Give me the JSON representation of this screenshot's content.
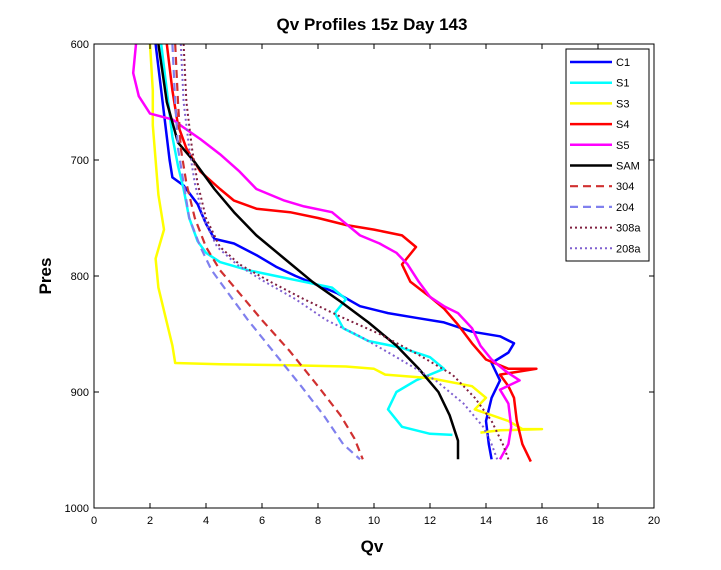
{
  "chart_data": {
    "type": "line",
    "title": "Qv Profiles 15z Day 143",
    "xlabel": "Qv",
    "ylabel": "Pres",
    "xlim": [
      0,
      20
    ],
    "ylim": [
      600,
      1000
    ],
    "y_reversed": true,
    "grid": false,
    "legend_position": "top-right",
    "xticks": [
      0,
      2,
      4,
      6,
      8,
      10,
      12,
      14,
      16,
      18,
      20
    ],
    "xtick_labels": [
      "0",
      "2",
      "4",
      "6",
      "8",
      "10",
      "12",
      "14",
      "16",
      "18",
      "20"
    ],
    "yticks": [
      600,
      700,
      800,
      900,
      1000
    ],
    "ytick_labels": [
      "600",
      "700",
      "800",
      "900",
      "1000"
    ],
    "series": [
      {
        "name": "C1",
        "color": "#0000ff",
        "dash": "solid",
        "width": 2.5,
        "points": [
          [
            2.2,
            600
          ],
          [
            2.4,
            640
          ],
          [
            2.6,
            680
          ],
          [
            2.7,
            700
          ],
          [
            2.8,
            715
          ],
          [
            3.2,
            722
          ],
          [
            3.7,
            738
          ],
          [
            4.0,
            755
          ],
          [
            4.3,
            768
          ],
          [
            5.0,
            772
          ],
          [
            5.8,
            782
          ],
          [
            6.5,
            792
          ],
          [
            7.2,
            800
          ],
          [
            8.0,
            808
          ],
          [
            8.7,
            815
          ],
          [
            9.5,
            826
          ],
          [
            10.5,
            832
          ],
          [
            11.5,
            836
          ],
          [
            12.5,
            840
          ],
          [
            13.5,
            848
          ],
          [
            14.5,
            852
          ],
          [
            15.0,
            858
          ],
          [
            14.8,
            866
          ],
          [
            14.2,
            875
          ],
          [
            14.5,
            890
          ],
          [
            14.2,
            905
          ],
          [
            14.0,
            925
          ],
          [
            14.1,
            945
          ],
          [
            14.2,
            958
          ]
        ]
      },
      {
        "name": "S1",
        "color": "#00ffff",
        "dash": "solid",
        "width": 2.5,
        "points": [
          [
            2.4,
            600
          ],
          [
            2.6,
            640
          ],
          [
            2.8,
            680
          ],
          [
            3.0,
            705
          ],
          [
            3.2,
            725
          ],
          [
            3.4,
            750
          ],
          [
            3.7,
            770
          ],
          [
            4.0,
            780
          ],
          [
            4.5,
            788
          ],
          [
            5.5,
            795
          ],
          [
            6.5,
            800
          ],
          [
            7.5,
            805
          ],
          [
            8.5,
            810
          ],
          [
            9.0,
            820
          ],
          [
            8.6,
            832
          ],
          [
            8.9,
            845
          ],
          [
            9.8,
            856
          ],
          [
            11.0,
            862
          ],
          [
            12.0,
            870
          ],
          [
            12.5,
            880
          ],
          [
            11.5,
            890
          ],
          [
            10.8,
            900
          ],
          [
            10.5,
            915
          ],
          [
            11.0,
            930
          ],
          [
            12.0,
            936
          ],
          [
            12.8,
            937
          ]
        ]
      },
      {
        "name": "S3",
        "color": "#ffff00",
        "dash": "solid",
        "width": 2.5,
        "points": [
          [
            2.0,
            600
          ],
          [
            2.1,
            640
          ],
          [
            2.1,
            670
          ],
          [
            2.2,
            700
          ],
          [
            2.3,
            730
          ],
          [
            2.5,
            760
          ],
          [
            2.2,
            785
          ],
          [
            2.3,
            810
          ],
          [
            2.6,
            840
          ],
          [
            2.8,
            860
          ],
          [
            2.9,
            875
          ],
          [
            4.5,
            876
          ],
          [
            7.0,
            877
          ],
          [
            9.0,
            878
          ],
          [
            10.0,
            880
          ],
          [
            10.4,
            885
          ],
          [
            12.0,
            888
          ],
          [
            13.5,
            895
          ],
          [
            14.0,
            905
          ],
          [
            13.6,
            915
          ],
          [
            14.2,
            920
          ],
          [
            14.8,
            925
          ],
          [
            15.3,
            932
          ],
          [
            16.0,
            932
          ],
          [
            14.5,
            933
          ],
          [
            13.8,
            935
          ]
        ]
      },
      {
        "name": "S4",
        "color": "#ff0000",
        "dash": "solid",
        "width": 2.5,
        "points": [
          [
            2.6,
            600
          ],
          [
            2.8,
            640
          ],
          [
            3.0,
            670
          ],
          [
            3.3,
            690
          ],
          [
            3.8,
            710
          ],
          [
            4.5,
            725
          ],
          [
            5.0,
            735
          ],
          [
            5.8,
            742
          ],
          [
            7.0,
            745
          ],
          [
            8.0,
            750
          ],
          [
            9.0,
            756
          ],
          [
            10.0,
            760
          ],
          [
            11.0,
            765
          ],
          [
            11.5,
            775
          ],
          [
            11.0,
            790
          ],
          [
            11.3,
            805
          ],
          [
            12.0,
            818
          ],
          [
            12.5,
            828
          ],
          [
            13.0,
            842
          ],
          [
            13.5,
            858
          ],
          [
            14.0,
            872
          ],
          [
            14.8,
            880
          ],
          [
            15.8,
            880
          ],
          [
            14.5,
            885
          ],
          [
            14.8,
            895
          ],
          [
            15.0,
            905
          ],
          [
            15.1,
            925
          ],
          [
            15.3,
            945
          ],
          [
            15.6,
            960
          ]
        ]
      },
      {
        "name": "S5",
        "color": "#ff00ff",
        "dash": "solid",
        "width": 2.5,
        "points": [
          [
            1.5,
            600
          ],
          [
            1.4,
            625
          ],
          [
            1.6,
            645
          ],
          [
            2.0,
            660
          ],
          [
            2.8,
            665
          ],
          [
            3.2,
            672
          ],
          [
            3.8,
            682
          ],
          [
            4.5,
            695
          ],
          [
            5.2,
            710
          ],
          [
            5.8,
            725
          ],
          [
            6.8,
            735
          ],
          [
            7.5,
            740
          ],
          [
            8.5,
            745
          ],
          [
            9.0,
            755
          ],
          [
            9.5,
            765
          ],
          [
            10.2,
            772
          ],
          [
            10.8,
            780
          ],
          [
            11.2,
            790
          ],
          [
            11.6,
            805
          ],
          [
            12.0,
            818
          ],
          [
            12.5,
            826
          ],
          [
            13.0,
            832
          ],
          [
            13.5,
            845
          ],
          [
            13.8,
            860
          ],
          [
            14.2,
            872
          ],
          [
            14.7,
            882
          ],
          [
            15.2,
            890
          ],
          [
            14.5,
            898
          ],
          [
            14.8,
            910
          ],
          [
            14.9,
            930
          ],
          [
            14.8,
            945
          ],
          [
            14.5,
            958
          ]
        ]
      },
      {
        "name": "SAM",
        "color": "#000000",
        "dash": "solid",
        "width": 2.5,
        "points": [
          [
            2.3,
            600
          ],
          [
            2.6,
            650
          ],
          [
            3.0,
            685
          ],
          [
            3.6,
            702
          ],
          [
            4.3,
            725
          ],
          [
            5.0,
            745
          ],
          [
            5.8,
            765
          ],
          [
            6.8,
            785
          ],
          [
            7.8,
            805
          ],
          [
            8.8,
            822
          ],
          [
            9.8,
            840
          ],
          [
            10.8,
            860
          ],
          [
            11.6,
            880
          ],
          [
            12.3,
            900
          ],
          [
            12.7,
            920
          ],
          [
            13.0,
            942
          ],
          [
            13.0,
            958
          ]
        ]
      },
      {
        "name": "304",
        "color": "#d03030",
        "dash": "8,5",
        "width": 2.2,
        "points": [
          [
            2.9,
            600
          ],
          [
            3.0,
            650
          ],
          [
            3.1,
            690
          ],
          [
            3.3,
            720
          ],
          [
            3.6,
            750
          ],
          [
            4.0,
            775
          ],
          [
            4.5,
            795
          ],
          [
            5.2,
            815
          ],
          [
            6.0,
            838
          ],
          [
            7.0,
            865
          ],
          [
            8.0,
            895
          ],
          [
            8.8,
            920
          ],
          [
            9.3,
            940
          ],
          [
            9.6,
            958
          ]
        ]
      },
      {
        "name": "204",
        "color": "#8080ee",
        "dash": "8,5",
        "width": 2.2,
        "points": [
          [
            2.8,
            600
          ],
          [
            2.9,
            650
          ],
          [
            3.0,
            690
          ],
          [
            3.2,
            720
          ],
          [
            3.4,
            750
          ],
          [
            3.8,
            775
          ],
          [
            4.2,
            795
          ],
          [
            4.8,
            815
          ],
          [
            5.5,
            838
          ],
          [
            6.4,
            865
          ],
          [
            7.4,
            895
          ],
          [
            8.2,
            920
          ],
          [
            8.9,
            945
          ],
          [
            9.5,
            958
          ]
        ]
      },
      {
        "name": "308a",
        "color": "#802040",
        "dash": "2,3",
        "width": 2.0,
        "points": [
          [
            3.2,
            600
          ],
          [
            3.3,
            650
          ],
          [
            3.5,
            690
          ],
          [
            3.7,
            720
          ],
          [
            4.0,
            750
          ],
          [
            4.5,
            775
          ],
          [
            5.2,
            790
          ],
          [
            6.3,
            805
          ],
          [
            7.5,
            820
          ],
          [
            8.8,
            835
          ],
          [
            10.2,
            850
          ],
          [
            11.6,
            868
          ],
          [
            12.8,
            885
          ],
          [
            13.6,
            905
          ],
          [
            14.2,
            925
          ],
          [
            14.6,
            945
          ],
          [
            14.8,
            958
          ]
        ]
      },
      {
        "name": "208a",
        "color": "#8060d0",
        "dash": "2,3",
        "width": 2.0,
        "points": [
          [
            3.1,
            600
          ],
          [
            3.2,
            650
          ],
          [
            3.4,
            690
          ],
          [
            3.6,
            720
          ],
          [
            3.9,
            750
          ],
          [
            4.4,
            775
          ],
          [
            5.1,
            790
          ],
          [
            6.1,
            805
          ],
          [
            7.2,
            820
          ],
          [
            8.3,
            838
          ],
          [
            9.5,
            852
          ],
          [
            10.8,
            870
          ],
          [
            12.2,
            890
          ],
          [
            13.2,
            910
          ],
          [
            13.9,
            930
          ],
          [
            14.2,
            945
          ],
          [
            14.4,
            958
          ]
        ]
      }
    ]
  }
}
